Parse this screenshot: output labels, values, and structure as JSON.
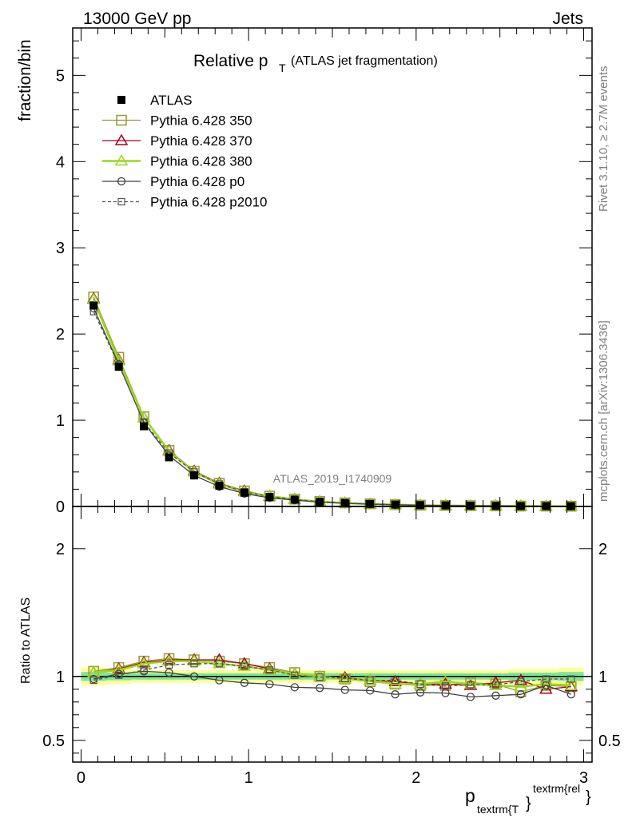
{
  "header": {
    "left": "13000 GeV pp",
    "right": "Jets"
  },
  "side_text": {
    "rivet": "Rivet 3.1.10, ≥ 2.7M events",
    "mcplots": "mcplots.cern.ch [arXiv:1306.3436]"
  },
  "chart_data": [
    {
      "type": "line",
      "title_main": "Relative p",
      "title_sub": "T",
      "title_rest": "(ATLAS jet fragmentation)",
      "ylabel": "fraction/bin",
      "watermark": "ATLAS_2019_I1740909",
      "xlim": [
        -0.05,
        3.05
      ],
      "ylim": [
        0,
        5.55
      ],
      "yticks": [
        0,
        1,
        2,
        3,
        4,
        5
      ],
      "x": [
        0.075,
        0.225,
        0.375,
        0.525,
        0.675,
        0.825,
        0.975,
        1.125,
        1.275,
        1.425,
        1.575,
        1.725,
        1.875,
        2.025,
        2.175,
        2.325,
        2.475,
        2.625,
        2.775,
        2.925
      ],
      "legend": [
        "ATLAS",
        "Pythia 6.428 350",
        "Pythia 6.428 370",
        "Pythia 6.428 380",
        "Pythia 6.428 p0",
        "Pythia 6.428 p2010"
      ],
      "series": [
        {
          "name": "ATLAS",
          "color": "#000000",
          "marker": "filled-square",
          "values": [
            2.33,
            1.62,
            0.93,
            0.57,
            0.36,
            0.24,
            0.16,
            0.11,
            0.08,
            0.055,
            0.04,
            0.03,
            0.022,
            0.016,
            0.012,
            0.009,
            0.007,
            0.005,
            0.004,
            0.003
          ]
        },
        {
          "name": "Pythia 6.428 350",
          "color": "#999933",
          "marker": "open-square",
          "values": [
            2.43,
            1.73,
            1.04,
            0.65,
            0.41,
            0.27,
            0.18,
            0.12,
            0.085,
            0.058,
            0.041,
            0.03,
            0.021,
            0.015,
            0.011,
            0.0085,
            0.0065,
            0.0045,
            0.0037,
            0.0028
          ]
        },
        {
          "name": "Pythia 6.428 370",
          "color": "#a50021",
          "marker": "open-triangle",
          "values": [
            2.41,
            1.7,
            1.03,
            0.65,
            0.41,
            0.27,
            0.18,
            0.12,
            0.084,
            0.057,
            0.04,
            0.029,
            0.021,
            0.015,
            0.011,
            0.0083,
            0.0067,
            0.0048,
            0.0036,
            0.0028
          ]
        },
        {
          "name": "Pythia 6.428 380",
          "color": "#99d91a",
          "marker": "open-triangle",
          "values": [
            2.4,
            1.69,
            1.03,
            0.64,
            0.4,
            0.26,
            0.17,
            0.12,
            0.083,
            0.056,
            0.04,
            0.029,
            0.021,
            0.015,
            0.011,
            0.0084,
            0.0064,
            0.0046,
            0.0037,
            0.0028
          ]
        },
        {
          "name": "Pythia 6.428 p0",
          "color": "#404040",
          "marker": "open-circle",
          "values": [
            2.3,
            1.65,
            0.97,
            0.59,
            0.36,
            0.23,
            0.15,
            0.1,
            0.073,
            0.05,
            0.036,
            0.027,
            0.019,
            0.014,
            0.0104,
            0.0076,
            0.0059,
            0.0043,
            0.0034,
            0.0026
          ]
        },
        {
          "name": "Pythia 6.428 p2010",
          "color": "#555555",
          "marker": "open-square-small",
          "dashed": true,
          "values": [
            2.26,
            1.64,
            0.98,
            0.62,
            0.4,
            0.26,
            0.17,
            0.115,
            0.081,
            0.055,
            0.039,
            0.029,
            0.021,
            0.015,
            0.011,
            0.0085,
            0.0066,
            0.0048,
            0.0039,
            0.0029
          ]
        }
      ]
    },
    {
      "type": "line",
      "ylabel": "Ratio to ATLAS",
      "xlabel_main": "p",
      "xlabel_sub": "textrm{T",
      "xlabel_brace": "}",
      "xlabel_sup": "textrm{rel",
      "xlabel_sup_brace": "}",
      "xlim": [
        -0.05,
        3.05
      ],
      "ylim": [
        0.33,
        2.33
      ],
      "yticks": [
        0.5,
        1,
        2
      ],
      "xticks": [
        0,
        1,
        2,
        3
      ],
      "band_yellow": [
        0.07,
        0.06,
        0.05,
        0.05,
        0.05,
        0.05,
        0.05,
        0.05,
        0.05,
        0.05,
        0.05,
        0.05,
        0.05,
        0.05,
        0.05,
        0.05,
        0.05,
        0.06,
        0.06,
        0.07
      ],
      "band_green": [
        0.035,
        0.03,
        0.025,
        0.025,
        0.025,
        0.025,
        0.025,
        0.025,
        0.025,
        0.025,
        0.025,
        0.025,
        0.025,
        0.025,
        0.025,
        0.025,
        0.025,
        0.03,
        0.03,
        0.035
      ],
      "series": [
        {
          "name": "Pythia 6.428 350",
          "values": [
            1.04,
            1.07,
            1.12,
            1.14,
            1.13,
            1.12,
            1.1,
            1.07,
            1.03,
            1.0,
            0.98,
            0.96,
            0.94,
            0.93,
            0.93,
            0.95,
            0.94,
            0.88,
            0.93,
            0.92
          ]
        },
        {
          "name": "Pythia 6.428 370",
          "values": [
            1.03,
            1.06,
            1.11,
            1.13,
            1.13,
            1.13,
            1.1,
            1.06,
            1.02,
            1.0,
            0.99,
            0.97,
            0.96,
            0.94,
            0.94,
            0.93,
            0.95,
            0.97,
            0.9,
            0.92
          ]
        },
        {
          "name": "Pythia 6.428 380",
          "values": [
            1.03,
            1.05,
            1.1,
            1.12,
            1.12,
            1.1,
            1.08,
            1.05,
            1.02,
            1.0,
            0.98,
            0.97,
            0.94,
            0.94,
            0.96,
            0.94,
            0.93,
            0.92,
            0.94,
            0.93
          ]
        },
        {
          "name": "Pythia 6.428 p0",
          "values": [
            0.98,
            1.02,
            1.04,
            1.03,
            1.0,
            0.97,
            0.95,
            0.94,
            0.915,
            0.91,
            0.895,
            0.89,
            0.86,
            0.875,
            0.87,
            0.84,
            0.85,
            0.86,
            0.93,
            0.86
          ]
        },
        {
          "name": "Pythia 6.428 p2010",
          "values": [
            0.97,
            1.01,
            1.05,
            1.09,
            1.1,
            1.1,
            1.08,
            1.05,
            1.01,
            0.995,
            0.985,
            0.97,
            0.97,
            0.94,
            0.925,
            0.935,
            0.935,
            0.96,
            0.98,
            0.98
          ]
        }
      ]
    }
  ]
}
